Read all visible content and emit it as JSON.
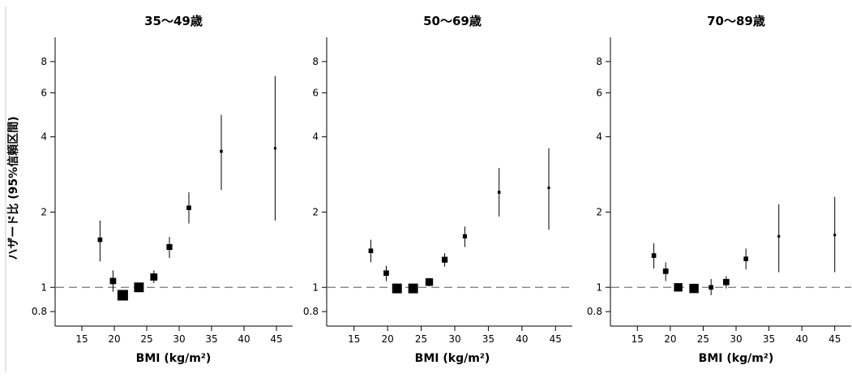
{
  "ylabel": "ハザード比 (95%信頼区間)",
  "xlabel": "BMI (kg/m²)",
  "x_ticks": [
    15,
    20,
    25,
    30,
    35,
    40,
    45
  ],
  "y_ticks": [
    0.8,
    1,
    2,
    4,
    6,
    8
  ],
  "colors": {
    "marker": "#000000",
    "reference_line": "#777777"
  },
  "chart_data": [
    {
      "type": "scatter",
      "title": "35〜49歳",
      "xlabel": "BMI (kg/m²)",
      "ylabel": "ハザード比 (95%信頼区間)",
      "y_scale": "log",
      "xlim": [
        12.5,
        47.5
      ],
      "ylim": [
        0.7,
        10
      ],
      "reference_line": 1,
      "points": [
        {
          "x": 17.8,
          "y": 1.55,
          "lo": 1.27,
          "hi": 1.85,
          "weight": 0.3
        },
        {
          "x": 19.8,
          "y": 1.06,
          "lo": 0.96,
          "hi": 1.17,
          "weight": 0.5
        },
        {
          "x": 21.3,
          "y": 0.93,
          "lo": 0.9,
          "hi": 0.96,
          "weight": 1.0
        },
        {
          "x": 23.8,
          "y": 1.0,
          "lo": 0.97,
          "hi": 1.03,
          "weight": 0.9
        },
        {
          "x": 26.1,
          "y": 1.1,
          "lo": 1.04,
          "hi": 1.17,
          "weight": 0.6
        },
        {
          "x": 28.5,
          "y": 1.45,
          "lo": 1.31,
          "hi": 1.59,
          "weight": 0.45
        },
        {
          "x": 31.5,
          "y": 2.08,
          "lo": 1.8,
          "hi": 2.4,
          "weight": 0.3
        },
        {
          "x": 36.5,
          "y": 3.5,
          "lo": 2.45,
          "hi": 4.9,
          "weight": 0.1
        },
        {
          "x": 44.8,
          "y": 3.6,
          "lo": 1.85,
          "hi": 7.0,
          "weight": 0.05
        }
      ]
    },
    {
      "type": "scatter",
      "title": "50〜69歳",
      "xlabel": "BMI (kg/m²)",
      "ylabel": "",
      "y_scale": "log",
      "xlim": [
        12.5,
        47.5
      ],
      "ylim": [
        0.7,
        10
      ],
      "reference_line": 1,
      "points": [
        {
          "x": 17.5,
          "y": 1.4,
          "lo": 1.26,
          "hi": 1.55,
          "weight": 0.3
        },
        {
          "x": 19.8,
          "y": 1.14,
          "lo": 1.06,
          "hi": 1.22,
          "weight": 0.4
        },
        {
          "x": 21.4,
          "y": 0.99,
          "lo": 0.97,
          "hi": 1.02,
          "weight": 0.9
        },
        {
          "x": 23.8,
          "y": 0.99,
          "lo": 0.97,
          "hi": 1.02,
          "weight": 0.9
        },
        {
          "x": 26.2,
          "y": 1.05,
          "lo": 1.01,
          "hi": 1.09,
          "weight": 0.65
        },
        {
          "x": 28.5,
          "y": 1.29,
          "lo": 1.21,
          "hi": 1.37,
          "weight": 0.45
        },
        {
          "x": 31.5,
          "y": 1.6,
          "lo": 1.45,
          "hi": 1.75,
          "weight": 0.25
        },
        {
          "x": 36.6,
          "y": 2.4,
          "lo": 1.92,
          "hi": 3.0,
          "weight": 0.1
        },
        {
          "x": 44.0,
          "y": 2.5,
          "lo": 1.7,
          "hi": 3.6,
          "weight": 0.05
        }
      ]
    },
    {
      "type": "scatter",
      "title": "70〜89歳",
      "xlabel": "BMI (kg/m²)",
      "ylabel": "",
      "y_scale": "log",
      "xlim": [
        12.5,
        47.5
      ],
      "ylim": [
        0.7,
        10
      ],
      "reference_line": 1,
      "points": [
        {
          "x": 17.5,
          "y": 1.34,
          "lo": 1.19,
          "hi": 1.5,
          "weight": 0.3
        },
        {
          "x": 19.3,
          "y": 1.16,
          "lo": 1.06,
          "hi": 1.26,
          "weight": 0.4
        },
        {
          "x": 21.2,
          "y": 1.0,
          "lo": 0.97,
          "hi": 1.03,
          "weight": 0.75
        },
        {
          "x": 23.6,
          "y": 0.99,
          "lo": 0.96,
          "hi": 1.02,
          "weight": 0.85
        },
        {
          "x": 26.2,
          "y": 1.0,
          "lo": 0.93,
          "hi": 1.08,
          "weight": 0.3
        },
        {
          "x": 28.5,
          "y": 1.05,
          "lo": 0.99,
          "hi": 1.11,
          "weight": 0.5
        },
        {
          "x": 31.5,
          "y": 1.3,
          "lo": 1.18,
          "hi": 1.43,
          "weight": 0.3
        },
        {
          "x": 36.5,
          "y": 1.6,
          "lo": 1.15,
          "hi": 2.15,
          "weight": 0.05
        },
        {
          "x": 45.0,
          "y": 1.62,
          "lo": 1.15,
          "hi": 2.3,
          "weight": 0.05
        }
      ]
    }
  ]
}
